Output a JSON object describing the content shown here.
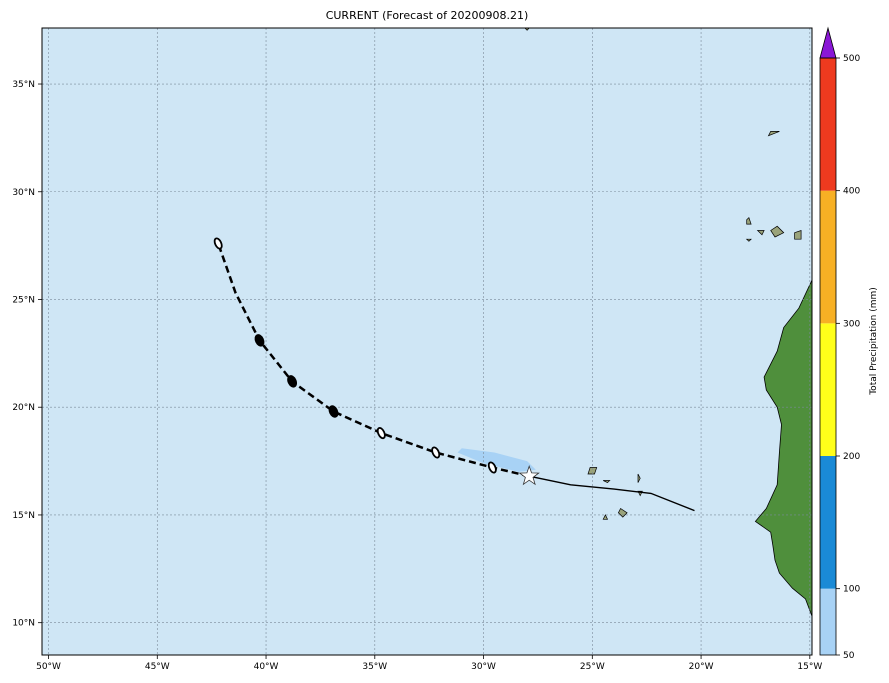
{
  "title": "CURRENT (Forecast of 20200908.21)",
  "colorbar": {
    "label": "Total Precipitation (mm)",
    "ticks": [
      "50",
      "100",
      "200",
      "300",
      "400",
      "500"
    ],
    "bins": [
      {
        "from": 50,
        "to": 100,
        "color": "#a8d2f5"
      },
      {
        "from": 100,
        "to": 200,
        "color": "#1a8ad6"
      },
      {
        "from": 200,
        "to": 300,
        "color": "#ffff1a"
      },
      {
        "from": 300,
        "to": 400,
        "color": "#f7b024"
      },
      {
        "from": 400,
        "to": 500,
        "color": "#ee3a1f"
      }
    ],
    "extend_color": "#8a17d6"
  },
  "map": {
    "ocean_color": "#cfe6f5",
    "land_color": "#4f8f3c",
    "lon_range": [
      -50.3,
      -14.9
    ],
    "lat_range": [
      8.5,
      37.6
    ],
    "lon_ticks": [
      {
        "value": -50,
        "label": "50°W"
      },
      {
        "value": -45,
        "label": "45°W"
      },
      {
        "value": -40,
        "label": "40°W"
      },
      {
        "value": -35,
        "label": "35°W"
      },
      {
        "value": -30,
        "label": "30°W"
      },
      {
        "value": -25,
        "label": "25°W"
      },
      {
        "value": -20,
        "label": "20°W"
      },
      {
        "value": -15,
        "label": "15°W"
      }
    ],
    "lat_ticks": [
      {
        "value": 10,
        "label": "10°N"
      },
      {
        "value": 15,
        "label": "15°N"
      },
      {
        "value": 20,
        "label": "20°N"
      },
      {
        "value": 25,
        "label": "25°N"
      },
      {
        "value": 30,
        "label": "30°N"
      },
      {
        "value": 35,
        "label": "35°N"
      }
    ]
  },
  "track": {
    "past": [
      [
        -20.3,
        15.2
      ],
      [
        -22.3,
        16.0
      ],
      [
        -24.0,
        16.2
      ],
      [
        -26.0,
        16.4
      ],
      [
        -27.9,
        16.8
      ]
    ],
    "current": [
      -27.9,
      16.8
    ],
    "forecast_line": [
      [
        -27.9,
        16.8
      ],
      [
        -29.6,
        17.2
      ],
      [
        -32.2,
        17.9
      ],
      [
        -34.7,
        18.8
      ],
      [
        -36.9,
        19.8
      ],
      [
        -38.8,
        21.2
      ],
      [
        -40.3,
        23.1
      ],
      [
        -41.4,
        25.3
      ],
      [
        -42.2,
        27.6
      ]
    ],
    "forecast_points": [
      {
        "lon": -29.6,
        "lat": 17.2,
        "filled": false
      },
      {
        "lon": -32.2,
        "lat": 17.9,
        "filled": false
      },
      {
        "lon": -34.7,
        "lat": 18.8,
        "filled": false
      },
      {
        "lon": -36.9,
        "lat": 19.8,
        "filled": true
      },
      {
        "lon": -38.8,
        "lat": 21.2,
        "filled": true
      },
      {
        "lon": -40.3,
        "lat": 23.1,
        "filled": true
      },
      {
        "lon": -42.2,
        "lat": 27.6,
        "filled": false
      }
    ]
  },
  "rain_swath": [
    [
      -31.0,
      18.1
    ],
    [
      -29.5,
      17.9
    ],
    [
      -28.0,
      17.5
    ],
    [
      -27.6,
      17.1
    ],
    [
      -28.4,
      17.0
    ],
    [
      -30.0,
      17.4
    ],
    [
      -31.2,
      17.9
    ]
  ],
  "land": {
    "africa": [
      [
        -14.9,
        25.9
      ],
      [
        -15.5,
        24.6
      ],
      [
        -16.2,
        23.7
      ],
      [
        -16.5,
        22.6
      ],
      [
        -17.1,
        21.4
      ],
      [
        -17.0,
        20.8
      ],
      [
        -16.5,
        20.0
      ],
      [
        -16.3,
        19.2
      ],
      [
        -16.4,
        17.9
      ],
      [
        -16.5,
        16.4
      ],
      [
        -17.0,
        15.3
      ],
      [
        -17.5,
        14.7
      ],
      [
        -16.8,
        14.2
      ],
      [
        -16.7,
        13.6
      ],
      [
        -16.6,
        12.9
      ],
      [
        -16.4,
        12.3
      ],
      [
        -15.8,
        11.6
      ],
      [
        -15.2,
        11.1
      ],
      [
        -14.9,
        10.3
      ],
      [
        -14.9,
        25.9
      ]
    ],
    "islands": [
      [
        [
          -16.8,
          28.2
        ],
        [
          -16.5,
          28.4
        ],
        [
          -16.2,
          28.1
        ],
        [
          -16.6,
          27.9
        ]
      ],
      [
        [
          -15.7,
          28.1
        ],
        [
          -15.4,
          28.2
        ],
        [
          -15.4,
          27.8
        ],
        [
          -15.7,
          27.8
        ]
      ],
      [
        [
          -17.9,
          28.7
        ],
        [
          -17.8,
          28.8
        ],
        [
          -17.7,
          28.5
        ],
        [
          -17.9,
          28.5
        ]
      ],
      [
        [
          -17.4,
          28.2
        ],
        [
          -17.1,
          28.2
        ],
        [
          -17.2,
          28.0
        ]
      ],
      [
        [
          -17.9,
          27.8
        ],
        [
          -17.7,
          27.8
        ],
        [
          -17.8,
          27.7
        ]
      ],
      [
        [
          -16.8,
          32.8
        ],
        [
          -16.4,
          32.8
        ],
        [
          -16.9,
          32.6
        ]
      ],
      [
        [
          -25.1,
          17.2
        ],
        [
          -24.8,
          17.2
        ],
        [
          -24.9,
          16.9
        ],
        [
          -25.2,
          16.9
        ]
      ],
      [
        [
          -24.5,
          16.6
        ],
        [
          -24.2,
          16.6
        ],
        [
          -24.3,
          16.5
        ]
      ],
      [
        [
          -23.7,
          15.3
        ],
        [
          -23.4,
          15.1
        ],
        [
          -23.6,
          14.9
        ],
        [
          -23.8,
          15.1
        ]
      ],
      [
        [
          -22.9,
          16.9
        ],
        [
          -22.8,
          16.7
        ],
        [
          -22.9,
          16.5
        ]
      ],
      [
        [
          -24.4,
          15.0
        ],
        [
          -24.3,
          14.8
        ],
        [
          -24.5,
          14.8
        ]
      ],
      [
        [
          -22.9,
          16.1
        ],
        [
          -22.7,
          16.1
        ],
        [
          -22.8,
          15.9
        ]
      ],
      [
        [
          -28.1,
          37.6
        ],
        [
          -27.9,
          37.6
        ],
        [
          -28.0,
          37.5
        ]
      ]
    ]
  }
}
